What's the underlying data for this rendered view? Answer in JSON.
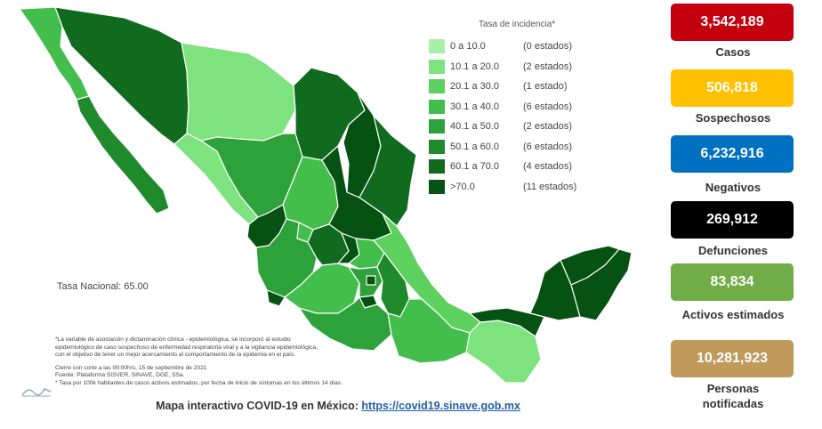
{
  "legend": {
    "title": "Tasa de incidencia*",
    "items": [
      {
        "range": "0   a  10.0",
        "count": "(0 estados)",
        "color": "#a8f0a8"
      },
      {
        "range": "10.1 a  20.0",
        "count": "(2 estados)",
        "color": "#7ee27e"
      },
      {
        "range": "20.1 a  30.0",
        "count": "(1 estado)",
        "color": "#5ed05e"
      },
      {
        "range": "30.1 a  40.0",
        "count": "(6 estados)",
        "color": "#43bd4c"
      },
      {
        "range": "40.1 a  50.0",
        "count": "(2 estados)",
        "color": "#2ea23a"
      },
      {
        "range": "50.1 a  60.0",
        "count": "(6 estados)",
        "color": "#1f8a2c"
      },
      {
        "range": "60.1 a  70.0",
        "count": "(4 estados)",
        "color": "#116b1e"
      },
      {
        "range": ">70.0",
        "count": "(11 estados)",
        "color": "#055212"
      }
    ]
  },
  "tasa_nacional": "Tasa Nacional: 65.00",
  "notes": {
    "line1": "*La variable de asociación y dictaminación clínica - epidemiológica, se incorporó al estudio",
    "line2": "epidemiológico de caso sospechoso de enfermedad respiratoria viral y a la vigilancia epidemiológica,",
    "line3": "con el objetivo de tener un mejor acercamiento al comportamiento de la epidemia en el país.",
    "line4": "Cierre con corte a las 09:00hrs, 15 de septiembre de 2021",
    "line5": "Fuente: Plataforma SISVER, SINAVE, DGE, SSa.",
    "line6": "* Tasa por 100k habitantes de casos activos estimados, por fecha de inicio de síntomas en los últimos 14 días."
  },
  "footer": {
    "text": "Mapa interactivo COVID-19 en México:",
    "link": "https://covid19.sinave.gob.mx"
  },
  "stats": [
    {
      "value": "3,542,189",
      "label": "Casos",
      "bg": "#c4000f",
      "fg": "#ffffff"
    },
    {
      "value": "506,818",
      "label": "Sospechosos",
      "bg": "#ffc000",
      "fg": "#ffffff"
    },
    {
      "value": "6,232,916",
      "label": "Negativos",
      "bg": "#0070c0",
      "fg": "#ffffff"
    },
    {
      "value": "269,912",
      "label": "Defunciones",
      "bg": "#000000",
      "fg": "#ffffff"
    },
    {
      "value": "83,834",
      "label": "Activos estimados",
      "bg": "#70ad47",
      "fg": "#ffffff"
    },
    {
      "value": "10,281,923",
      "label": "Personas notificadas",
      "bg": "#c09a5a",
      "fg": "#ffffff"
    }
  ]
}
